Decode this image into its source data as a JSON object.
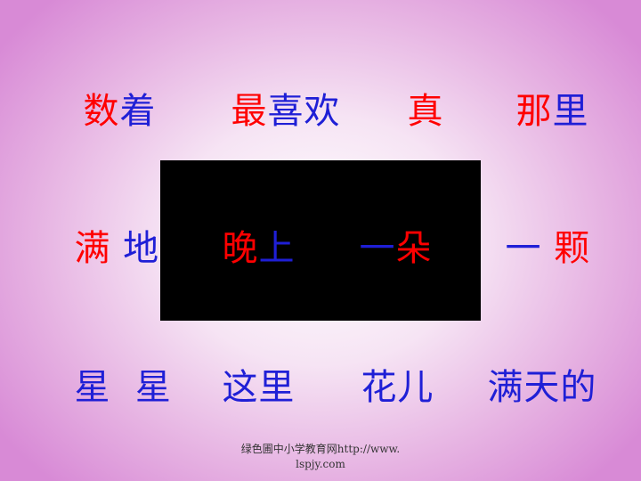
{
  "colors": {
    "red": "#ff0000",
    "blue": "#1f1fd6",
    "black_box": "#000000"
  },
  "rows": [
    [
      {
        "id": "w1",
        "segments": [
          {
            "text": "数",
            "color": "red"
          },
          {
            "text": "着",
            "color": "blue"
          }
        ]
      },
      {
        "id": "w2",
        "segments": [
          {
            "text": "最",
            "color": "red"
          },
          {
            "text": "喜欢",
            "color": "blue"
          }
        ]
      },
      {
        "id": "w3",
        "segments": [
          {
            "text": "真",
            "color": "red"
          }
        ]
      },
      {
        "id": "w4",
        "segments": [
          {
            "text": "那",
            "color": "red"
          },
          {
            "text": "里",
            "color": "blue"
          }
        ]
      }
    ],
    [
      {
        "id": "w5",
        "segments": [
          {
            "text": "满",
            "color": "red"
          },
          {
            "text": " 地",
            "color": "blue"
          }
        ]
      },
      {
        "id": "w6",
        "segments": [
          {
            "text": "晚",
            "color": "red"
          },
          {
            "text": "上",
            "color": "blue"
          }
        ]
      },
      {
        "id": "w7",
        "segments": [
          {
            "text": "一",
            "color": "blue"
          },
          {
            "text": "朵",
            "color": "red"
          }
        ]
      },
      {
        "id": "w8",
        "segments": [
          {
            "text": "一 ",
            "color": "blue"
          },
          {
            "text": "颗",
            "color": "red"
          }
        ]
      }
    ],
    [
      {
        "id": "w9",
        "segments": [
          {
            "text": "星  星",
            "color": "blue"
          }
        ]
      },
      {
        "id": "w10",
        "segments": [
          {
            "text": "这里",
            "color": "blue"
          }
        ]
      },
      {
        "id": "w11",
        "segments": [
          {
            "text": "花儿",
            "color": "blue"
          }
        ]
      },
      {
        "id": "w12",
        "segments": [
          {
            "text": "满天的",
            "color": "blue"
          }
        ]
      }
    ]
  ],
  "footer": {
    "line1": "绿色圃中小学教育网http://www.",
    "line2": "lspjy.com"
  }
}
